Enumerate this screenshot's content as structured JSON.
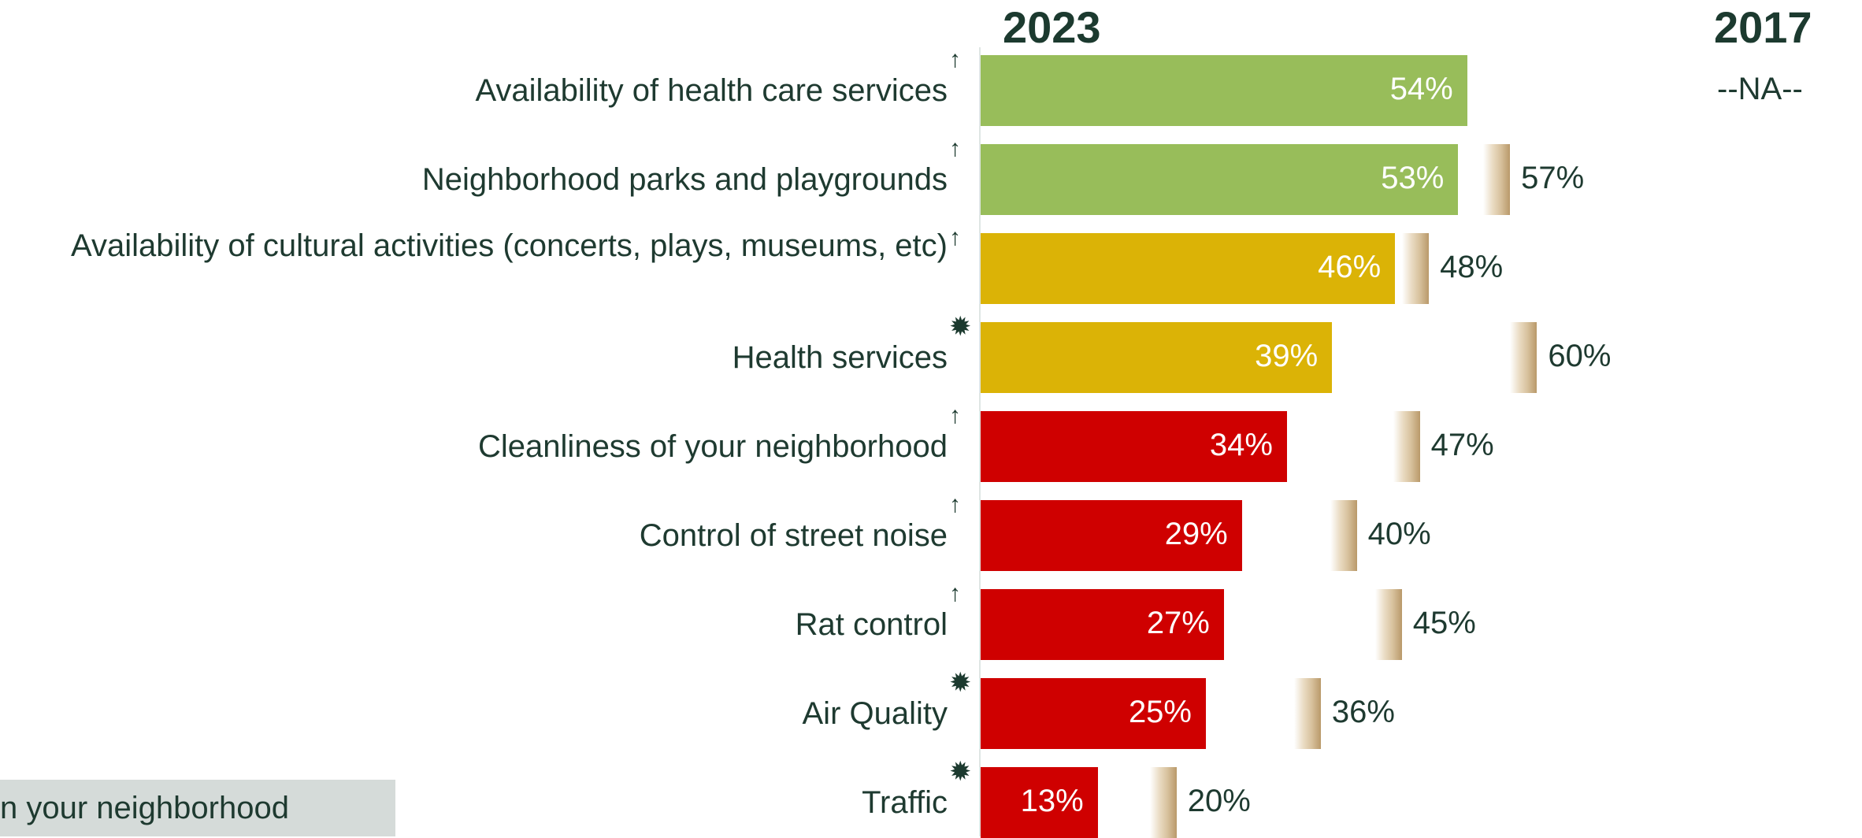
{
  "chart_data": {
    "type": "bar",
    "orientation": "horizontal",
    "column_headers": {
      "current": "2023",
      "previous": "2017"
    },
    "categories": [
      "Availability of health care services",
      "Neighborhood parks and playgrounds",
      "Availability of cultural activities (concerts, plays, museums, etc)",
      "Health services",
      "Cleanliness of your neighborhood",
      "Control of street noise",
      "Rat control",
      "Air Quality",
      "Traffic"
    ],
    "series": [
      {
        "name": "2023",
        "values": [
          54,
          53,
          46,
          39,
          34,
          29,
          27,
          25,
          13
        ]
      },
      {
        "name": "2017",
        "values": [
          null,
          57,
          48,
          60,
          47,
          40,
          45,
          36,
          20
        ]
      }
    ],
    "value_labels_2023": [
      "54%",
      "53%",
      "46%",
      "39%",
      "34%",
      "29%",
      "27%",
      "25%",
      "13%"
    ],
    "value_labels_2017": [
      "--NA--",
      "57%",
      "48%",
      "60%",
      "47%",
      "40%",
      "45%",
      "36%",
      "20%"
    ],
    "bar_colors": [
      "#98bd5a",
      "#98bd5a",
      "#dbb306",
      "#dbb306",
      "#cf0000",
      "#cf0000",
      "#cf0000",
      "#cf0000",
      "#cf0000"
    ],
    "markers": [
      "arrow",
      "arrow",
      "arrow",
      "burst",
      "arrow",
      "arrow",
      "arrow",
      "burst",
      "burst"
    ],
    "xlim": [
      0,
      100
    ]
  },
  "footnote": "n your neighborhood",
  "colors": {
    "green": "#98bd5a",
    "yellow": "#dbb306",
    "red": "#cf0000",
    "previous_bar": "#d8c29e",
    "text": "#1e3a30"
  }
}
